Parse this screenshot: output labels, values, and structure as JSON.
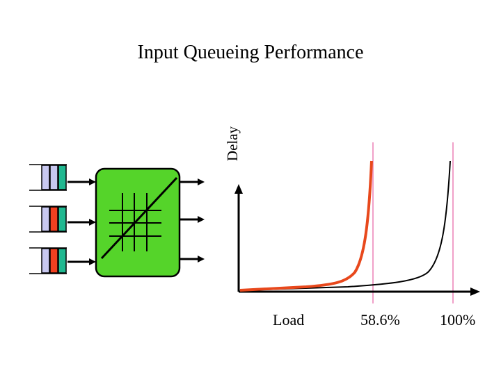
{
  "title": "Input Queueing Performance",
  "axis": {
    "y_label": "Delay",
    "x_label": "Load"
  },
  "markers": [
    {
      "label": "58.6%",
      "color": "#f0a0c8"
    },
    {
      "label": "100%",
      "color": "#f0a0c8"
    }
  ],
  "curves": [
    {
      "name": "input-queueing",
      "color": "#e8481c"
    },
    {
      "name": "output-queueing",
      "color": "#000000"
    }
  ],
  "switch": {
    "fill": "#55d42a",
    "border": "#000000"
  },
  "queues": [
    {
      "cells": [
        "#c8c8f0",
        "#c8c8f0",
        "#20b890"
      ]
    },
    {
      "cells": [
        "#c8c8f0",
        "#f04020",
        "#20b890"
      ]
    },
    {
      "cells": [
        "#c8c8f0",
        "#f04020",
        "#20b890"
      ]
    }
  ]
}
